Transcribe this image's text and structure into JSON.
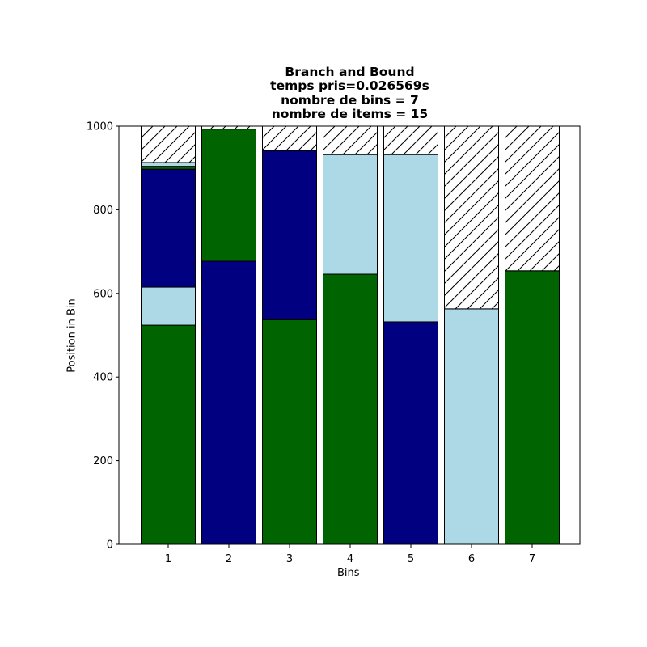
{
  "chart_data": {
    "type": "bar",
    "stacked": true,
    "title_lines": [
      "Branch and Bound",
      "temps pris=0.026569s",
      "nombre de bins = 7",
      "nombre de items = 15"
    ],
    "xlabel": "Bins",
    "ylabel": "Position in Bin",
    "categories": [
      "1",
      "2",
      "3",
      "4",
      "5",
      "6",
      "7"
    ],
    "ylim": [
      0,
      1000
    ],
    "yticks": [
      "0",
      "200",
      "400",
      "600",
      "800",
      "1000"
    ],
    "bin_capacity": 1000,
    "free_space_pattern": "hatched",
    "colors": {
      "green": "#006400",
      "navy": "#000080",
      "lightblue": "#add8e6",
      "edge": "#000000"
    },
    "bins": [
      {
        "bin": "1",
        "items": [
          {
            "size": 524,
            "color": "green"
          },
          {
            "size": 91,
            "color": "lightblue"
          },
          {
            "size": 282,
            "color": "navy"
          },
          {
            "size": 7,
            "color": "green"
          },
          {
            "size": 9,
            "color": "lightblue"
          }
        ]
      },
      {
        "bin": "2",
        "items": [
          {
            "size": 677,
            "color": "navy"
          },
          {
            "size": 316,
            "color": "green"
          }
        ]
      },
      {
        "bin": "3",
        "items": [
          {
            "size": 537,
            "color": "green"
          },
          {
            "size": 404,
            "color": "navy"
          }
        ]
      },
      {
        "bin": "4",
        "items": [
          {
            "size": 646,
            "color": "green"
          },
          {
            "size": 286,
            "color": "lightblue"
          }
        ]
      },
      {
        "bin": "5",
        "items": [
          {
            "size": 532,
            "color": "navy"
          },
          {
            "size": 400,
            "color": "lightblue"
          }
        ]
      },
      {
        "bin": "6",
        "items": [
          {
            "size": 563,
            "color": "lightblue"
          }
        ]
      },
      {
        "bin": "7",
        "items": [
          {
            "size": 654,
            "color": "green"
          }
        ]
      }
    ]
  }
}
